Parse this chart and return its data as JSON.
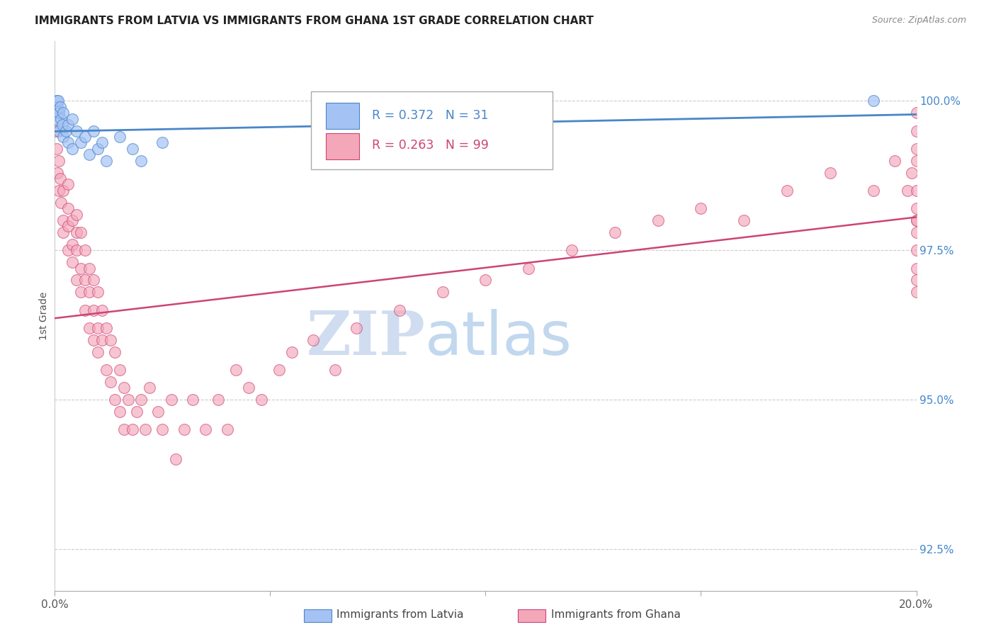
{
  "title": "IMMIGRANTS FROM LATVIA VS IMMIGRANTS FROM GHANA 1ST GRADE CORRELATION CHART",
  "source": "Source: ZipAtlas.com",
  "ylabel": "1st Grade",
  "ylabel_right_ticks": [
    100.0,
    97.5,
    95.0,
    92.5
  ],
  "ylabel_right_labels": [
    "100.0%",
    "97.5%",
    "95.0%",
    "92.5%"
  ],
  "legend_latvia": "Immigrants from Latvia",
  "legend_ghana": "Immigrants from Ghana",
  "r_latvia": 0.372,
  "n_latvia": 31,
  "r_ghana": 0.263,
  "n_ghana": 99,
  "latvia_color": "#a4c2f4",
  "ghana_color": "#f4a7b9",
  "latvia_line_color": "#4a86c8",
  "ghana_line_color": "#cc4477",
  "xlim": [
    0.0,
    0.2
  ],
  "ylim": [
    91.8,
    101.0
  ],
  "latvia_x": [
    0.0002,
    0.0004,
    0.0006,
    0.0008,
    0.001,
    0.001,
    0.0012,
    0.0015,
    0.0018,
    0.002,
    0.002,
    0.0025,
    0.003,
    0.003,
    0.004,
    0.004,
    0.005,
    0.006,
    0.007,
    0.008,
    0.009,
    0.01,
    0.011,
    0.012,
    0.015,
    0.018,
    0.02,
    0.025,
    0.065,
    0.085,
    0.19
  ],
  "latvia_y": [
    99.7,
    100.0,
    99.9,
    100.0,
    99.8,
    99.5,
    99.9,
    99.7,
    99.6,
    99.8,
    99.4,
    99.5,
    99.3,
    99.6,
    99.7,
    99.2,
    99.5,
    99.3,
    99.4,
    99.1,
    99.5,
    99.2,
    99.3,
    99.0,
    99.4,
    99.2,
    99.0,
    99.3,
    99.6,
    99.5,
    100.0
  ],
  "ghana_x": [
    0.0002,
    0.0004,
    0.0006,
    0.001,
    0.001,
    0.0012,
    0.0015,
    0.002,
    0.002,
    0.002,
    0.003,
    0.003,
    0.003,
    0.003,
    0.004,
    0.004,
    0.004,
    0.005,
    0.005,
    0.005,
    0.005,
    0.006,
    0.006,
    0.006,
    0.007,
    0.007,
    0.007,
    0.008,
    0.008,
    0.008,
    0.009,
    0.009,
    0.009,
    0.01,
    0.01,
    0.01,
    0.011,
    0.011,
    0.012,
    0.012,
    0.013,
    0.013,
    0.014,
    0.014,
    0.015,
    0.015,
    0.016,
    0.016,
    0.017,
    0.018,
    0.019,
    0.02,
    0.021,
    0.022,
    0.024,
    0.025,
    0.027,
    0.028,
    0.03,
    0.032,
    0.035,
    0.038,
    0.04,
    0.042,
    0.045,
    0.048,
    0.052,
    0.055,
    0.06,
    0.065,
    0.07,
    0.08,
    0.09,
    0.1,
    0.11,
    0.12,
    0.13,
    0.14,
    0.15,
    0.16,
    0.17,
    0.18,
    0.19,
    0.195,
    0.198,
    0.199,
    0.2,
    0.2,
    0.2,
    0.2,
    0.2,
    0.2,
    0.2,
    0.2,
    0.2,
    0.2,
    0.2,
    0.2,
    0.2
  ],
  "ghana_y": [
    99.5,
    99.2,
    98.8,
    99.0,
    98.5,
    98.7,
    98.3,
    98.0,
    98.5,
    97.8,
    97.5,
    98.2,
    97.9,
    98.6,
    97.3,
    98.0,
    97.6,
    97.5,
    98.1,
    97.0,
    97.8,
    97.2,
    97.8,
    96.8,
    97.5,
    97.0,
    96.5,
    97.2,
    96.8,
    96.2,
    97.0,
    96.5,
    96.0,
    96.8,
    96.2,
    95.8,
    96.5,
    96.0,
    96.2,
    95.5,
    96.0,
    95.3,
    95.8,
    95.0,
    95.5,
    94.8,
    95.2,
    94.5,
    95.0,
    94.5,
    94.8,
    95.0,
    94.5,
    95.2,
    94.8,
    94.5,
    95.0,
    94.0,
    94.5,
    95.0,
    94.5,
    95.0,
    94.5,
    95.5,
    95.2,
    95.0,
    95.5,
    95.8,
    96.0,
    95.5,
    96.2,
    96.5,
    96.8,
    97.0,
    97.2,
    97.5,
    97.8,
    98.0,
    98.2,
    98.0,
    98.5,
    98.8,
    98.5,
    99.0,
    98.5,
    98.8,
    99.2,
    99.5,
    98.0,
    97.5,
    97.8,
    98.2,
    98.5,
    99.0,
    97.0,
    96.8,
    97.2,
    98.0,
    99.8
  ],
  "watermark_zip": "ZIP",
  "watermark_atlas": "atlas",
  "background_color": "#ffffff",
  "grid_color": "#cccccc",
  "title_fontsize": 11,
  "right_tick_color": "#4488cc"
}
